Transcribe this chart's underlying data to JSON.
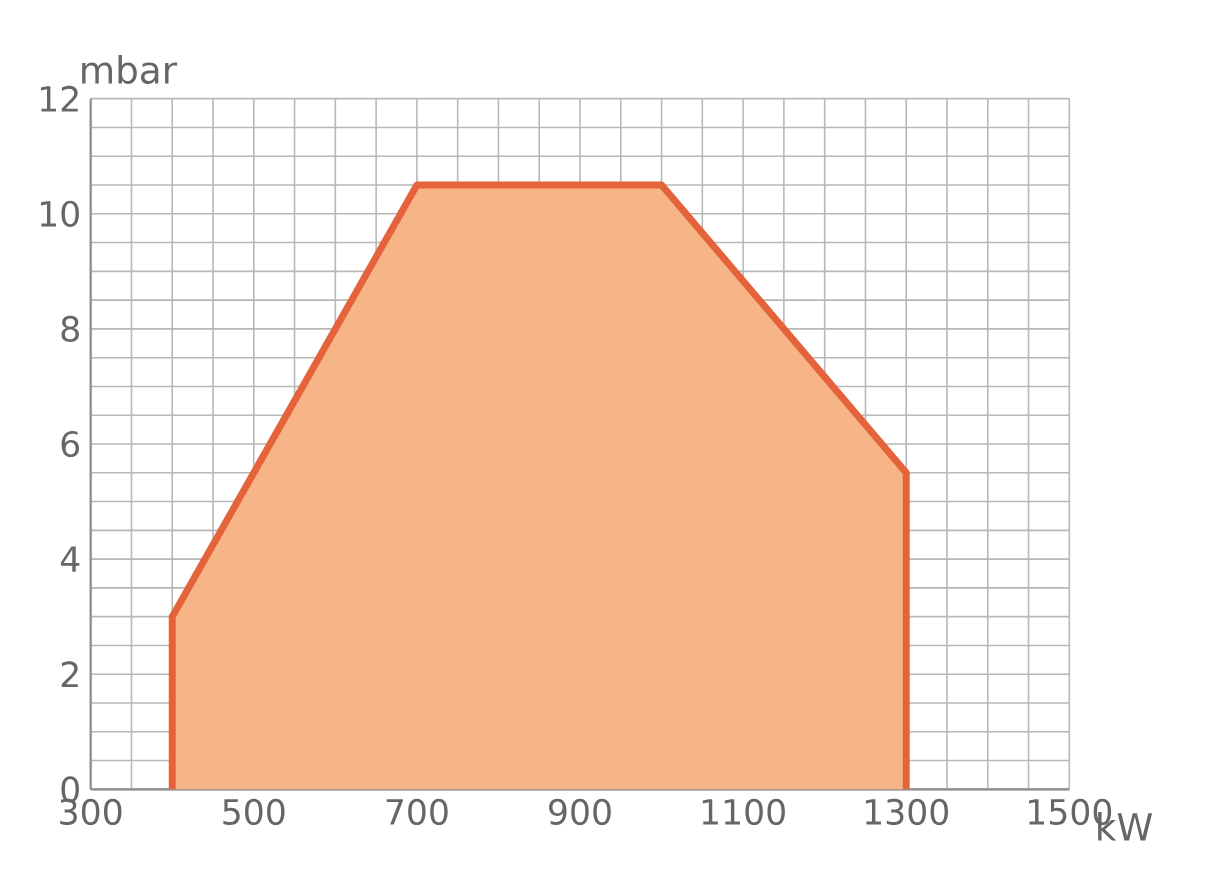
{
  "chart_data": {
    "type": "area",
    "xlabel": "kW",
    "ylabel": "mbar",
    "x": [
      400,
      400,
      700,
      1000,
      1300,
      1300
    ],
    "values": [
      0,
      3,
      10.5,
      10.5,
      5.5,
      0
    ],
    "color": "#e5633a",
    "xlim": [
      300,
      1500
    ],
    "ylim": [
      0,
      12
    ],
    "xticks": [
      300,
      500,
      700,
      900,
      1100,
      1300,
      1500
    ],
    "yticks": [
      0,
      2,
      4,
      6,
      8,
      10,
      12
    ],
    "grid": true
  }
}
